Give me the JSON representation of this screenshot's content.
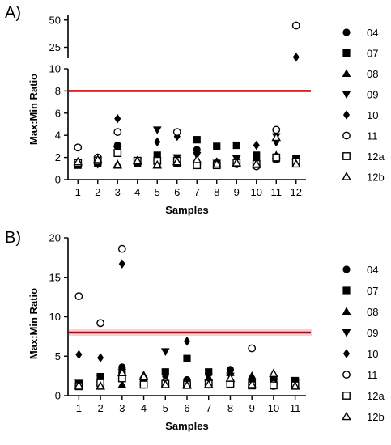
{
  "chart_data": [
    {
      "panel_label": "A)",
      "type": "scatter",
      "title": "",
      "xlabel": "Samples",
      "ylabel": "Max:Min  Ratio",
      "categories": [
        "1",
        "2",
        "3",
        "4",
        "5",
        "6",
        "7",
        "8",
        "9",
        "10",
        "11",
        "12"
      ],
      "y_axis": "broken",
      "ylim_lower": [
        0,
        10
      ],
      "yticks_lower": [
        "0",
        "2",
        "4",
        "6",
        "8",
        "10"
      ],
      "ylim_upper": [
        15,
        55
      ],
      "yticks_upper": [
        "25",
        "50"
      ],
      "threshold": 8,
      "threshold_color": "#e00000",
      "legend_position": "right",
      "series": [
        {
          "name": "04",
          "marker": "circle-filled",
          "values": [
            1.4,
            1.6,
            3.1,
            1.6,
            1.7,
            1.5,
            2.7,
            1.3,
            1.4,
            1.3,
            1.8,
            1.5
          ]
        },
        {
          "name": "07",
          "marker": "square-filled",
          "values": [
            1.3,
            1.5,
            2.4,
            1.5,
            2.2,
            1.5,
            3.6,
            3.0,
            3.1,
            2.2,
            1.9,
            1.9
          ]
        },
        {
          "name": "08",
          "marker": "triangle-up-filled",
          "values": [
            1.4,
            1.7,
            1.4,
            1.6,
            1.4,
            1.6,
            1.6,
            1.4,
            1.5,
            1.3,
            2.2,
            1.4
          ]
        },
        {
          "name": "09",
          "marker": "triangle-down-filled",
          "values": [
            1.6,
            1.8,
            2.7,
            1.7,
            4.5,
            2.0,
            2.2,
            1.5,
            1.9,
            1.6,
            3.9,
            1.5
          ]
        },
        {
          "name": "10",
          "marker": "diamond-filled",
          "values": [
            1.5,
            1.4,
            5.5,
            1.5,
            3.4,
            3.9,
            1.7,
            1.6,
            1.5,
            3.1,
            3.4,
            16
          ]
        },
        {
          "name": "11",
          "marker": "circle-open",
          "values": [
            2.9,
            2.0,
            4.3,
            1.6,
            1.5,
            4.3,
            1.4,
            1.4,
            1.4,
            1.2,
            4.5,
            45
          ]
        },
        {
          "name": "12a",
          "marker": "square-open",
          "values": [
            1.5,
            1.7,
            2.4,
            1.7,
            1.7,
            1.7,
            1.3,
            1.3,
            1.5,
            1.4,
            2.0,
            1.6
          ]
        },
        {
          "name": "12b",
          "marker": "triangle-up-open",
          "values": [
            1.6,
            1.8,
            1.3,
            1.7,
            1.3,
            1.6,
            1.8,
            1.4,
            1.5,
            1.4,
            3.8,
            1.4
          ]
        }
      ]
    },
    {
      "panel_label": "B)",
      "type": "scatter",
      "title": "",
      "xlabel": "Samples",
      "ylabel": "Max:Min  Ratio",
      "categories": [
        "1",
        "2",
        "3",
        "4",
        "5",
        "6",
        "7",
        "8",
        "9",
        "10",
        "11"
      ],
      "ylim": [
        0,
        20
      ],
      "yticks": [
        "0",
        "5",
        "10",
        "15",
        "20"
      ],
      "threshold": 8,
      "threshold_color": "#c00000",
      "threshold_band_color": "#f8d0d8",
      "legend_position": "right",
      "series": [
        {
          "name": "04",
          "marker": "circle-filled",
          "values": [
            1.5,
            2.0,
            3.6,
            1.5,
            1.6,
            2.0,
            2.8,
            3.3,
            1.9,
            1.2,
            1.6
          ]
        },
        {
          "name": "07",
          "marker": "square-filled",
          "values": [
            1.5,
            2.4,
            2.6,
            1.6,
            3.0,
            4.7,
            3.0,
            1.4,
            1.6,
            2.1,
            1.9
          ]
        },
        {
          "name": "08",
          "marker": "triangle-up-filled",
          "values": [
            1.4,
            1.8,
            1.4,
            2.6,
            1.6,
            1.5,
            2.3,
            2.9,
            2.5,
            2.4,
            1.4
          ]
        },
        {
          "name": "09",
          "marker": "triangle-down-filled",
          "values": [
            1.6,
            2.2,
            3.0,
            1.9,
            5.6,
            1.7,
            1.6,
            2.5,
            1.6,
            1.8,
            1.6
          ]
        },
        {
          "name": "10",
          "marker": "diamond-filled",
          "values": [
            5.2,
            4.8,
            16.7,
            1.7,
            2.4,
            6.9,
            1.8,
            3.1,
            2.1,
            1.6,
            1.5
          ]
        },
        {
          "name": "11",
          "marker": "circle-open",
          "values": [
            12.6,
            9.2,
            18.6,
            1.4,
            1.7,
            1.4,
            1.4,
            1.6,
            6.0,
            1.5,
            1.4
          ]
        },
        {
          "name": "12a",
          "marker": "square-open",
          "values": [
            1.2,
            1.6,
            2.2,
            1.4,
            1.5,
            1.4,
            1.5,
            1.5,
            1.3,
            1.3,
            1.3
          ]
        },
        {
          "name": "12b",
          "marker": "triangle-up-open",
          "values": [
            1.3,
            1.2,
            2.9,
            2.4,
            1.4,
            1.3,
            1.4,
            2.2,
            1.4,
            2.8,
            1.2
          ]
        }
      ]
    }
  ]
}
